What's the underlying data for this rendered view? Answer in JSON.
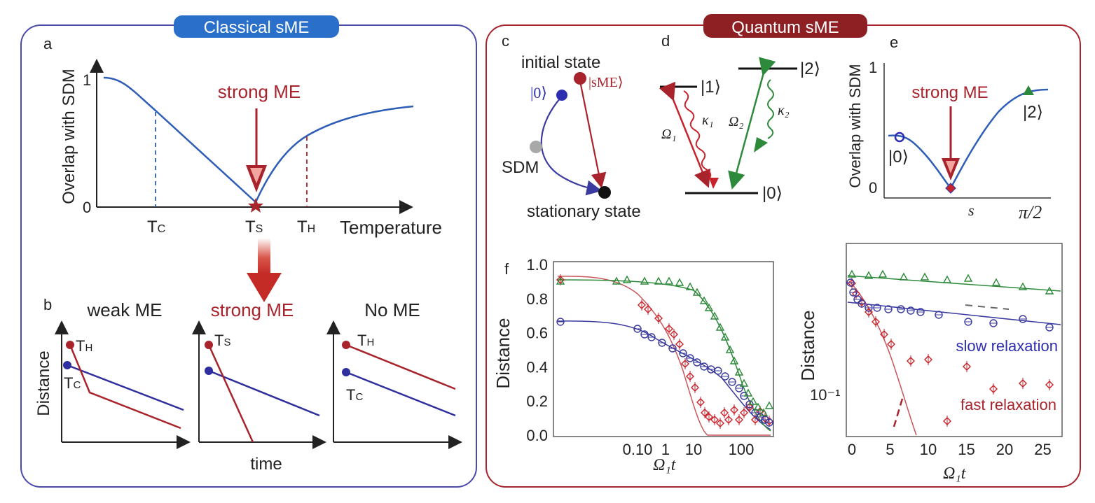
{
  "classical": {
    "badge": "Classical sME",
    "panel_a": {
      "letter": "a",
      "ylabel": "Overlap with SDM",
      "ytick_top": "1",
      "ytick_bottom": "0",
      "xlabel": "Temperature",
      "annotation": "strong ME",
      "tc_label": "T",
      "tc_sub": "C",
      "ts_label": "T",
      "ts_sub": "S",
      "th_label": "T",
      "th_sub": "H"
    },
    "panel_b": {
      "letter": "b",
      "ylabel": "Distance",
      "xlabel": "time",
      "titles": [
        "weak ME",
        "strong ME",
        "No ME"
      ],
      "th": "T",
      "th_sub": "H",
      "tc": "T",
      "tc_sub": "C",
      "ts": "T",
      "ts_sub": "S"
    }
  },
  "quantum": {
    "badge": "Quantum sME",
    "panel_c": {
      "letter": "c",
      "initial_state": "initial state",
      "ket0": "|0⟩",
      "ketsme": "|sME⟩",
      "sdm": "SDM",
      "stationary": "stationary state"
    },
    "panel_d": {
      "letter": "d",
      "ket1": "|1⟩",
      "ket2": "|2⟩",
      "ket0": "|0⟩",
      "omega1": "Ω₁",
      "omega2": "Ω₂",
      "kappa1": "κ₁",
      "kappa2": "κ₂"
    },
    "panel_e": {
      "letter": "e",
      "ylabel": "Overlap with SDM",
      "ytick_top": "1",
      "ytick_bottom": "0",
      "annotation": "strong ME",
      "ket0": "|0⟩",
      "ket2": "|2⟩",
      "x_s": "s",
      "x_end": "π/2"
    },
    "panel_f": {
      "letter": "f",
      "ylabel": "Distance",
      "xlabel": "Ω₁t",
      "yticks": [
        "1.0",
        "0.8",
        "0.6",
        "0.4",
        "0.2",
        "0.0"
      ],
      "xticks": [
        "0.10",
        "1",
        "10",
        "100"
      ]
    },
    "panel_g": {
      "ylabel": "Distance",
      "xlabel": "Ω₁t",
      "ytick": "10⁻¹",
      "xticks": [
        "0",
        "5",
        "10",
        "15",
        "20",
        "25"
      ],
      "slow": "slow relaxation",
      "fast": "fast relaxation"
    }
  },
  "colors": {
    "blue": "#2e5db7",
    "red": "#a8232b",
    "green": "#2d8a3a",
    "badge_blue": "#2a6fc9",
    "badge_red": "#8e1f22"
  }
}
